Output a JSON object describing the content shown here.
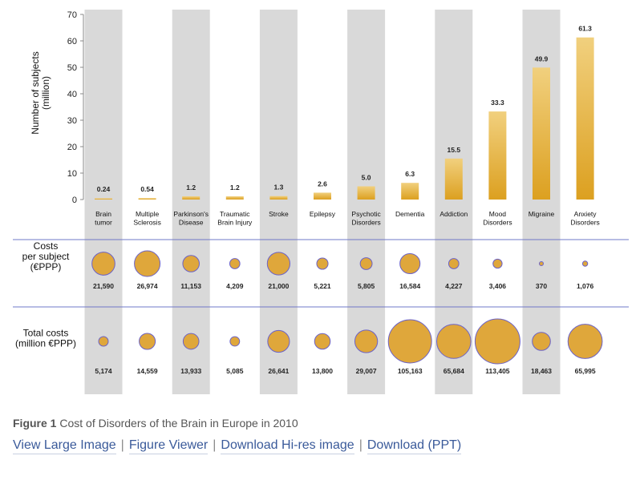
{
  "chart_data": {
    "type": "bar",
    "ylabel": "Number of subjects\n(million)",
    "ylim": [
      0,
      70
    ],
    "yticks": [
      0,
      10,
      20,
      30,
      40,
      50,
      60,
      70
    ],
    "categories": [
      [
        "Brain",
        "tumor"
      ],
      [
        "Multiple",
        "Sclerosis"
      ],
      [
        "Parkinson's",
        "Disease"
      ],
      [
        "Traumatic",
        "Brain Injury"
      ],
      [
        "Stroke"
      ],
      [
        "Epilepsy"
      ],
      [
        "Psychotic",
        "Disorders"
      ],
      [
        "Dementia"
      ],
      [
        "Addiction"
      ],
      [
        "Mood",
        "Disorders"
      ],
      [
        "Migraine"
      ],
      [
        "Anxiety",
        "Disorders"
      ]
    ],
    "values": [
      0.24,
      0.54,
      1.2,
      1.2,
      1.3,
      2.6,
      5.0,
      6.3,
      15.5,
      33.3,
      49.9,
      61.3
    ],
    "value_labels": [
      "0.24",
      "0.54",
      "1.2",
      "1.2",
      "1.3",
      "2.6",
      "5.0",
      "6.3",
      "15.5",
      "33.3",
      "49.9",
      "61.3"
    ],
    "shaded_columns": [
      0,
      2,
      4,
      6,
      8,
      10
    ],
    "bubble_rows": [
      {
        "label": "Costs\nper subject\n(€PPP)",
        "values": [
          21590,
          26974,
          11153,
          4209,
          21000,
          5221,
          5805,
          16584,
          4227,
          3406,
          370,
          1076
        ],
        "value_labels": [
          "21,590",
          "26,974",
          "11,153",
          "4,209",
          "21,000",
          "5,221",
          "5,805",
          "16,584",
          "4,227",
          "3,406",
          "370",
          "1,076"
        ]
      },
      {
        "label": "Total costs\n(million €PPP)",
        "values": [
          5174,
          14559,
          13933,
          5085,
          26641,
          13800,
          29007,
          105163,
          65684,
          113405,
          18463,
          65995
        ],
        "value_labels": [
          "5,174",
          "14,559",
          "13,933",
          "5,085",
          "26,641",
          "13,800",
          "29,007",
          "105,163",
          "65,684",
          "113,405",
          "18,463",
          "65,995"
        ]
      }
    ],
    "colors": {
      "bar_light": "#f1d07e",
      "bar_dark": "#dca020",
      "bubble_fill": "#dfa73b",
      "bubble_stroke": "#6b62c8",
      "shade": "#d9d9d9",
      "divider": "#6f78c8"
    },
    "grid": false,
    "legend": "none"
  },
  "figure": {
    "caption_label": "Figure 1",
    "caption_text": "Cost of Disorders of the Brain in Europe in 2010"
  },
  "links": [
    "View Large Image",
    "Figure Viewer",
    "Download Hi-res image",
    "Download (PPT)"
  ]
}
